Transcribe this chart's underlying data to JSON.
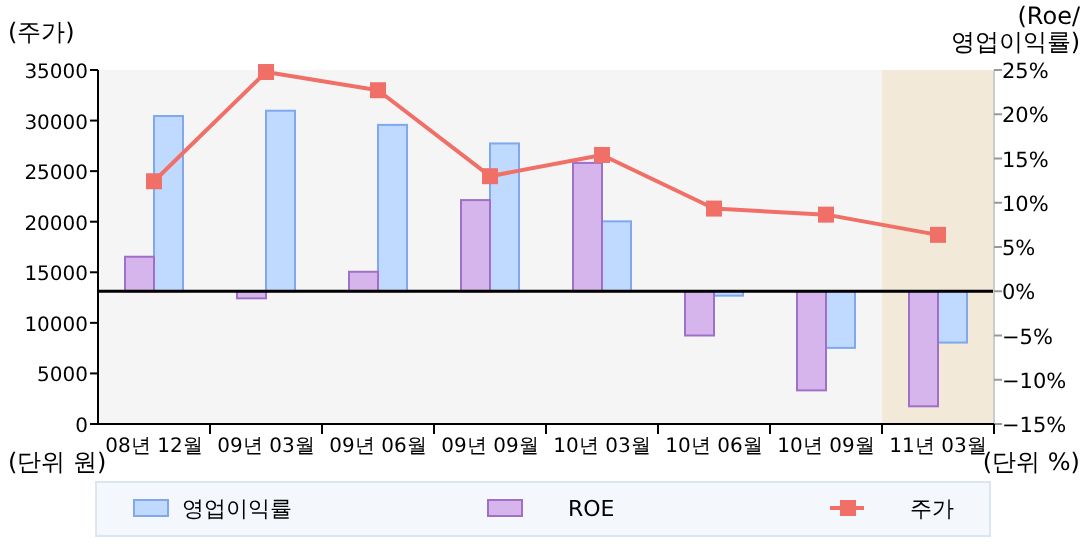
{
  "chart_data": {
    "type": "bar",
    "ylabel": "(주가)",
    "y2label": "(Roe/\n영업이익률)",
    "categories": [
      "08년 12월",
      "09년 03월",
      "09년 06월",
      "09년 09월",
      "10년 03월",
      "10년 06월",
      "10년 09월",
      "11년 03월"
    ],
    "series": [
      {
        "name": "영업이익률",
        "axis": "y2",
        "color": "#c0daff",
        "values": [
          19.8,
          20.4,
          18.8,
          16.7,
          7.9,
          -0.5,
          -6.4,
          -5.8
        ]
      },
      {
        "name": "ROE",
        "axis": "y2",
        "color": "#d5b5ec",
        "values": [
          3.9,
          -0.8,
          2.2,
          10.3,
          14.5,
          -5.0,
          -11.2,
          -13.0
        ]
      },
      {
        "name": "주가",
        "type": "line",
        "color": "#f07068",
        "marker": "square",
        "values": [
          24000,
          34800,
          33000,
          24500,
          26600,
          21300,
          20700,
          18700
        ]
      }
    ],
    "ylim": [
      0,
      35000
    ],
    "yticks": [
      0,
      5000,
      10000,
      15000,
      20000,
      25000,
      30000,
      35000
    ],
    "y2lim": [
      -15,
      25
    ],
    "y2ticks": [
      {
        "value": -15,
        "label": "−15%"
      },
      {
        "value": -10,
        "label": "−10%"
      },
      {
        "value": -5,
        "label": "−5%"
      },
      {
        "value": 0,
        "label": "0%"
      },
      {
        "value": 5,
        "label": "5%"
      },
      {
        "value": 10,
        "label": "10%"
      },
      {
        "value": 15,
        "label": "15%"
      },
      {
        "value": 20,
        "label": "20%"
      },
      {
        "value": 25,
        "label": "25%"
      }
    ],
    "ref_lines": [
      {
        "axis": "y2",
        "value": 0,
        "color": "#000000"
      }
    ],
    "bands": [
      {
        "axis": "x",
        "from": "11년 03월",
        "to": "11년 03월",
        "color": "#f3e9d9"
      }
    ],
    "annotations": [
      "(단위 원)",
      "(단위 %)"
    ],
    "grid": false,
    "legend": "bottom"
  }
}
